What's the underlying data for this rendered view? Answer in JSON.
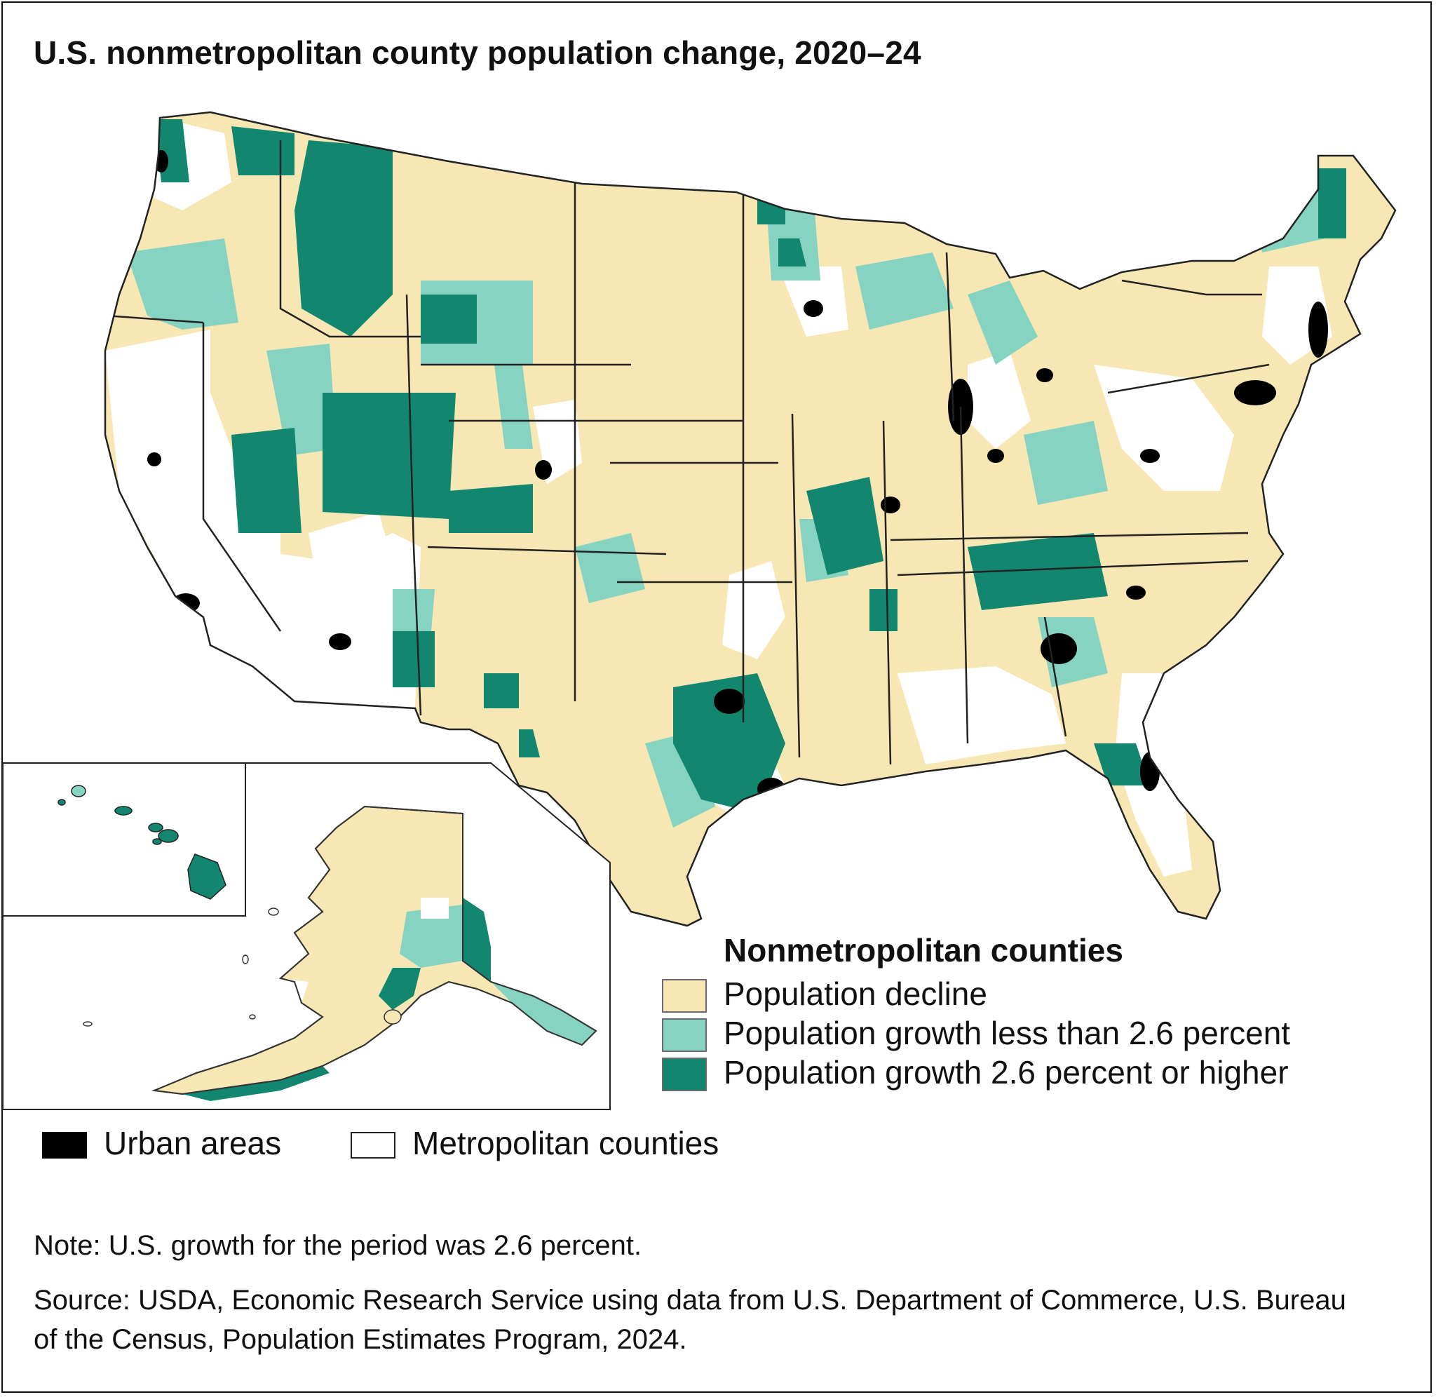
{
  "title": "U.S. nonmetropolitan county population change, 2020–24",
  "legend": {
    "title": "Nonmetropolitan counties",
    "items": [
      {
        "label": "Population decline",
        "color": "#f6e7b4"
      },
      {
        "label": "Population growth less than 2.6 percent",
        "color": "#86d3c1"
      },
      {
        "label": "Population growth 2.6 percent or higher",
        "color": "#12866e"
      }
    ]
  },
  "secondary_legend": {
    "urban": {
      "label": "Urban areas",
      "color": "#000000"
    },
    "metro": {
      "label": "Metropolitan counties",
      "color": "#ffffff"
    }
  },
  "note": "Note: U.S. growth for the period was 2.6 percent.",
  "source": "Source: USDA, Economic Research Service using data from U.S. Department of Commerce, U.S. Bureau of the Census, Population Estimates Program, 2024.",
  "colors": {
    "decline": "#f6e7b4",
    "growth_low": "#86d3c1",
    "growth_high": "#12866e",
    "metro": "#ffffff",
    "urban": "#000000",
    "border": "#333333"
  }
}
